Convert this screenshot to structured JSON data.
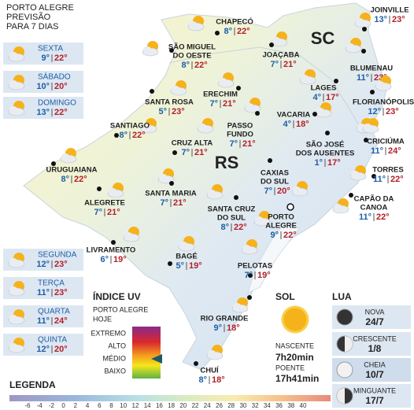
{
  "header": {
    "lines": [
      "PORTO ALEGRE",
      "PREVISÃO",
      "PARA 7 DIAS"
    ]
  },
  "forecast": [
    {
      "day": "SEXTA",
      "min": "9°",
      "max": "22°"
    },
    {
      "day": "SÁBADO",
      "min": "10°",
      "max": "20°"
    },
    {
      "day": "DOMINGO",
      "min": "13°",
      "max": "22°"
    },
    {
      "day": "SEGUNDA",
      "min": "12°",
      "max": "23°"
    },
    {
      "day": "TERÇA",
      "min": "11°",
      "max": "23°"
    },
    {
      "day": "QUARTA",
      "min": "11°",
      "max": "24°"
    },
    {
      "day": "QUINTA",
      "min": "12°",
      "max": "20°"
    }
  ],
  "regions": [
    "SC",
    "RS"
  ],
  "cities": [
    {
      "name": [
        "JOINVILLE"
      ],
      "min": "13°",
      "max": "23°"
    },
    {
      "name": [
        "CHAPECÓ"
      ],
      "min": "8°",
      "max": "22°"
    },
    {
      "name": [
        "SÃO MIGUEL",
        "DO OESTE"
      ],
      "min": "8°",
      "max": "22°"
    },
    {
      "name": [
        "JOAÇABA"
      ],
      "min": "7°",
      "max": "21°"
    },
    {
      "name": [
        "BLUMENAU"
      ],
      "min": "11°",
      "max": "23°"
    },
    {
      "name": [
        "LAGES"
      ],
      "min": "4°",
      "max": "17°"
    },
    {
      "name": [
        "FLORIANÓPOLIS"
      ],
      "min": "12°",
      "max": "23°"
    },
    {
      "name": [
        "ERECHIM"
      ],
      "min": "7°",
      "max": "21°"
    },
    {
      "name": [
        "SANTA ROSA"
      ],
      "min": "5°",
      "max": "23°"
    },
    {
      "name": [
        "PASSO",
        "FUNDO"
      ],
      "min": "7°",
      "max": "21°"
    },
    {
      "name": [
        "VACARIA"
      ],
      "min": "4°",
      "max": "18°"
    },
    {
      "name": [
        "SANTIAGO"
      ],
      "min": "8°",
      "max": "22°"
    },
    {
      "name": [
        "CRUZ ALTA"
      ],
      "min": "7°",
      "max": "21°"
    },
    {
      "name": [
        "SÃO JOSÉ",
        "DOS AUSENTES"
      ],
      "min": "1°",
      "max": "17°"
    },
    {
      "name": [
        "CRICIÚMA"
      ],
      "min": "11°",
      "max": "24°"
    },
    {
      "name": [
        "URUGUAIANA"
      ],
      "min": "8°",
      "max": "22°"
    },
    {
      "name": [
        "CAXIAS",
        "DO SUL"
      ],
      "min": "7°",
      "max": "20°"
    },
    {
      "name": [
        "TORRES"
      ],
      "min": "11°",
      "max": "22°"
    },
    {
      "name": [
        "ALEGRETE"
      ],
      "min": "7°",
      "max": "21°"
    },
    {
      "name": [
        "SANTA MARIA"
      ],
      "min": "7°",
      "max": "21°"
    },
    {
      "name": [
        "CAPÃO DA",
        "CANOA"
      ],
      "min": "11°",
      "max": "22°"
    },
    {
      "name": [
        "SANTA CRUZ",
        "DO SUL"
      ],
      "min": "8°",
      "max": "22°"
    },
    {
      "name": [
        "PORTO",
        "ALEGRE"
      ],
      "min": "9°",
      "max": "22°"
    },
    {
      "name": [
        "LIVRAMENTO"
      ],
      "min": "6°",
      "max": "19°"
    },
    {
      "name": [
        "BAGÉ"
      ],
      "min": "5°",
      "max": "19°"
    },
    {
      "name": [
        "PELOTAS"
      ],
      "min": "7°",
      "max": "19°"
    },
    {
      "name": [
        "RIO GRANDE"
      ],
      "min": "9°",
      "max": "18°"
    },
    {
      "name": [
        "CHUÍ"
      ],
      "min": "8°",
      "max": "18°"
    }
  ],
  "uv": {
    "title": "ÍNDICE UV",
    "subtitle": [
      "PORTO ALEGRE",
      "HOJE"
    ],
    "levels": [
      "EXTREMO",
      "ALTO",
      "MÉDIO",
      "BAIXO"
    ]
  },
  "sun": {
    "title": "SOL",
    "sunrise_label": "NASCENTE",
    "sunrise": "7h20min",
    "sunset_label": "POENTE",
    "sunset": "17h41min"
  },
  "moon": {
    "title": "LUA",
    "phases": [
      {
        "name": "NOVA",
        "date": "24/7"
      },
      {
        "name": "CRESCENTE",
        "date": "1/8"
      },
      {
        "name": "CHEIA",
        "date": "10/7"
      },
      {
        "name": "MINGUANTE",
        "date": "17/7"
      }
    ]
  },
  "legend": {
    "title": "LEGENDA",
    "ticks": [
      -6,
      -4,
      -2,
      0,
      2,
      4,
      6,
      8,
      10,
      12,
      14,
      16,
      18,
      20,
      22,
      24,
      26,
      28,
      30,
      32,
      34,
      36,
      38,
      40
    ]
  }
}
